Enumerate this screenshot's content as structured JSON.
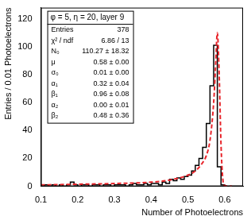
{
  "chart_data": {
    "type": "histogram",
    "x_label": "Number of Photoelectrons",
    "y_label": "Entries / 0.01 Photoelectrons",
    "xlim": [
      0.1,
      0.65
    ],
    "xticks": [
      0.1,
      0.2,
      0.3,
      0.4,
      0.5,
      0.6
    ],
    "ylim": [
      0,
      128
    ],
    "yticks": [
      0,
      20,
      40,
      60,
      80,
      100,
      120
    ],
    "grid": false,
    "series": [
      {
        "type": "histogram",
        "color": "#000000",
        "bins": [
          0.1,
          0.11,
          0.12,
          0.13,
          0.14,
          0.15,
          0.16,
          0.17,
          0.18,
          0.19,
          0.2,
          0.21,
          0.22,
          0.23,
          0.24,
          0.25,
          0.26,
          0.27,
          0.28,
          0.29,
          0.3,
          0.31,
          0.32,
          0.33,
          0.34,
          0.35,
          0.36,
          0.37,
          0.38,
          0.39,
          0.4,
          0.41,
          0.42,
          0.43,
          0.44,
          0.45,
          0.46,
          0.47,
          0.48,
          0.49,
          0.5,
          0.51,
          0.52,
          0.53,
          0.54,
          0.55,
          0.56,
          0.57,
          0.58,
          0.59,
          0.6,
          0.61,
          0.62,
          0.63,
          0.64,
          0.65
        ],
        "values": [
          1,
          0,
          1,
          0,
          1,
          0,
          1,
          0,
          1,
          3,
          1,
          0,
          1,
          1,
          0,
          1,
          1,
          0,
          1,
          1,
          0,
          1,
          1,
          1,
          0,
          1,
          2,
          1,
          1,
          2,
          1,
          2,
          2,
          1,
          3,
          2,
          5,
          4,
          6,
          5,
          7,
          8,
          11,
          15,
          20,
          28,
          45,
          72,
          101,
          14,
          1,
          0,
          0,
          0,
          0
        ]
      },
      {
        "type": "line",
        "color": "#e8242a",
        "line_style": "dashed",
        "x": [
          0.1,
          0.2,
          0.3,
          0.4,
          0.45,
          0.5,
          0.52,
          0.54,
          0.55,
          0.56,
          0.57,
          0.575,
          0.58,
          0.585,
          0.59,
          0.595,
          0.6,
          0.62
        ],
        "values": [
          1,
          1.5,
          2,
          3,
          4.5,
          8,
          11,
          17,
          22,
          33,
          60,
          85,
          110,
          80,
          30,
          5,
          0.5,
          0
        ]
      }
    ],
    "stats_box": {
      "title": "φ = 5, η = 20, layer 9",
      "rows": [
        [
          "Entries",
          "378"
        ],
        [
          "χ² / ndf",
          "6.86 / 13"
        ],
        [
          "N₀",
          "110.27 ± 18.32"
        ],
        [
          "μ",
          "0.58 ± 0.00"
        ],
        [
          "σ₀",
          "0.01 ± 0.00"
        ],
        [
          "α₁",
          "0.32 ± 0.04"
        ],
        [
          "β₁",
          "0.96 ± 0.08"
        ],
        [
          "α₂",
          "0.00 ± 0.01"
        ],
        [
          "β₂",
          "0.48 ± 0.36"
        ]
      ]
    }
  }
}
